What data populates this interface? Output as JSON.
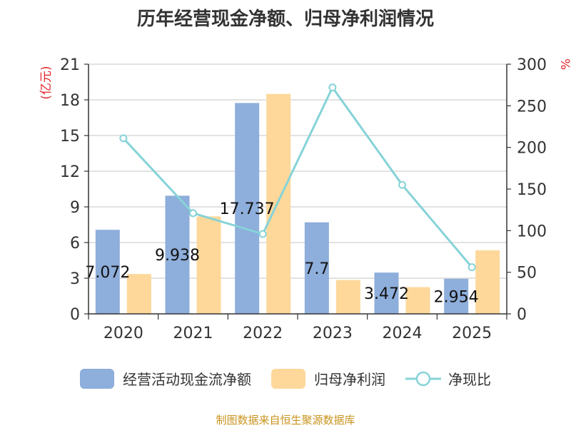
{
  "chart_data": {
    "type": "bar",
    "title": "历年经营现金净额、归母净利润情况",
    "categories": [
      "2020",
      "2021",
      "2022",
      "2023",
      "2024",
      "2025"
    ],
    "y_left": {
      "unit_label": "(亿元)",
      "ylim": [
        0,
        21
      ],
      "ticks": [
        0,
        3,
        6,
        9,
        12,
        15,
        18,
        21
      ]
    },
    "y_right": {
      "unit_label": "%",
      "ylim": [
        0,
        300
      ],
      "ticks": [
        0,
        50,
        100,
        150,
        200,
        250,
        300
      ]
    },
    "series": [
      {
        "name": "经营活动现金流净额",
        "type": "bar",
        "axis": "left",
        "color": "#8eaedb",
        "values": [
          7.072,
          9.938,
          17.737,
          7.7,
          3.472,
          2.954
        ],
        "labels": [
          "7.072",
          "9.938",
          "17.737",
          "7.7",
          "3.472",
          "2.954"
        ]
      },
      {
        "name": "归母净利润",
        "type": "bar",
        "axis": "left",
        "color": "#fdd89a",
        "values": [
          3.35,
          8.2,
          18.5,
          2.85,
          2.25,
          5.35
        ]
      },
      {
        "name": "净现比",
        "type": "line",
        "axis": "right",
        "color": "#86d3d8",
        "values": [
          211,
          121,
          96,
          272,
          155,
          56
        ]
      }
    ],
    "grid": true,
    "legend_position": "bottom"
  },
  "source_note": "制图数据来自恒生聚源数据库"
}
